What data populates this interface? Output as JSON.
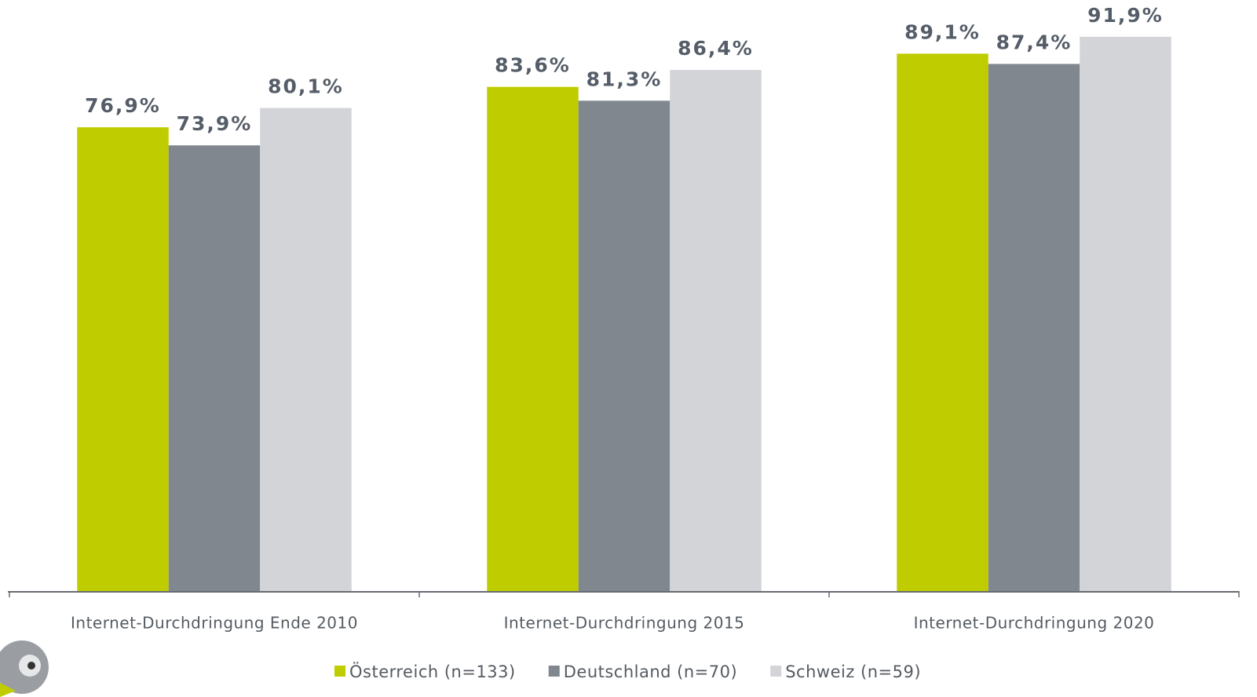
{
  "chart_data": {
    "type": "bar",
    "categories": [
      "Internet-Durchdringung Ende 2010",
      "Internet-Durchdringung 2015",
      "Internet-Durchdringung 2020"
    ],
    "series": [
      {
        "name": "Österreich (n=133)",
        "color": "#bfcd00",
        "values": [
          76.9,
          83.6,
          89.1
        ],
        "value_labels": [
          "76,9%",
          "83,6%",
          "89,1%"
        ]
      },
      {
        "name": "Deutschland (n=70)",
        "color": "#80878f",
        "values": [
          73.9,
          81.3,
          87.4
        ],
        "value_labels": [
          "73,9%",
          "81,3%",
          "87,4%"
        ]
      },
      {
        "name": "Schweiz (n=59)",
        "color": "#d3d4d8",
        "values": [
          80.1,
          86.4,
          91.9
        ],
        "value_labels": [
          "80,1%",
          "86,4%",
          "91,9%"
        ]
      }
    ],
    "ylim": [
      0,
      98
    ],
    "legend": "bottom"
  }
}
